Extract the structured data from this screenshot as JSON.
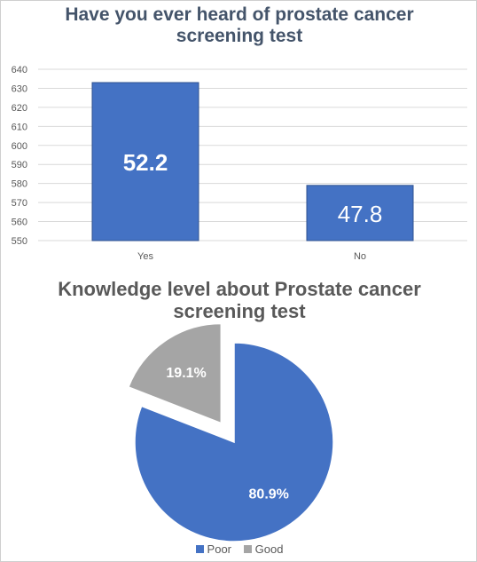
{
  "colors": {
    "primary": "#4472c4",
    "secondary": "#a5a5a5",
    "bar_edge": "#2f528f",
    "grid": "#d9d9d9"
  },
  "chart_data": [
    {
      "type": "bar",
      "title_lines": [
        "Have you ever heard of prostate cancer",
        "screening test"
      ],
      "categories": [
        "Yes",
        "No"
      ],
      "values": [
        633,
        579
      ],
      "data_labels": [
        "52.2",
        "47.8"
      ],
      "ylim": [
        550,
        640
      ],
      "yticks": [
        550,
        560,
        570,
        580,
        590,
        600,
        610,
        620,
        630,
        640
      ],
      "grid": true,
      "legend": "none"
    },
    {
      "type": "pie",
      "title_lines": [
        "Knowledge level about Prostate cancer",
        "screening test"
      ],
      "slices": [
        {
          "name": "Poor",
          "value": 80.9,
          "label": "80.9%"
        },
        {
          "name": "Good",
          "value": 19.1,
          "label": "19.1%",
          "exploded": true
        }
      ],
      "legend": "bottom"
    }
  ]
}
